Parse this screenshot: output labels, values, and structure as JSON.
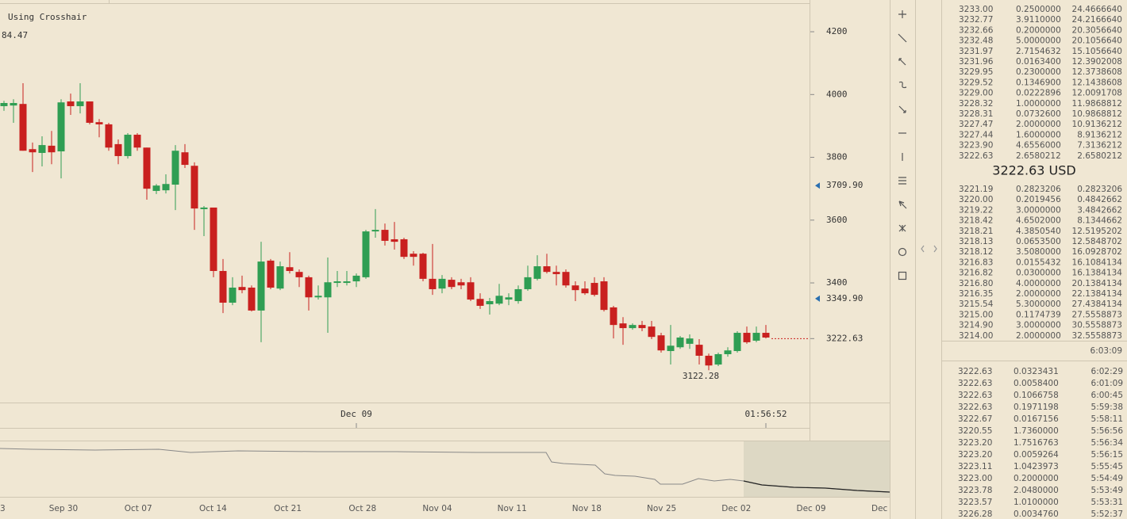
{
  "chart_data": {
    "type": "candlestick",
    "crosshair_label": "Using Crosshair",
    "crosshair_value": "84.47",
    "up_color": "#2f9e53",
    "down_color": "#c9201f",
    "open": [
      3963,
      3965,
      3970,
      3826,
      3814,
      3837,
      3819,
      3978,
      3963,
      3978,
      3912,
      3905,
      3842,
      3804,
      3872,
      3831,
      3693,
      3695,
      3713,
      3816,
      3773,
      3635,
      3640,
      3438,
      3337,
      3387,
      3385,
      3312,
      3471,
      3382,
      3450,
      3435,
      3418,
      3354,
      3354,
      3400,
      3400,
      3405,
      3418,
      3564,
      3569,
      3539,
      3539,
      3493,
      3493,
      3413,
      3382,
      3410,
      3402,
      3402,
      3349,
      3332,
      3334,
      3347,
      3342,
      3380,
      3413,
      3453,
      3435,
      3435,
      3392,
      3382,
      3400,
      3405,
      3322,
      3271,
      3256,
      3266,
      3261,
      3233,
      3183,
      3195,
      3206,
      3203,
      3168,
      3140,
      3173,
      3183,
      3241,
      3216,
      3241
    ],
    "high": [
      3980,
      3985,
      4036,
      3847,
      3867,
      3884,
      3985,
      4003,
      4036,
      3978,
      3922,
      3910,
      3857,
      3877,
      3877,
      3831,
      3715,
      3746,
      3839,
      3842,
      3784,
      3645,
      3640,
      3476,
      3418,
      3423,
      3392,
      3531,
      3476,
      3468,
      3498,
      3443,
      3423,
      3392,
      3481,
      3438,
      3438,
      3430,
      3569,
      3635,
      3589,
      3594,
      3544,
      3501,
      3496,
      3524,
      3425,
      3418,
      3413,
      3418,
      3367,
      3352,
      3397,
      3367,
      3392,
      3455,
      3488,
      3493,
      3455,
      3443,
      3405,
      3405,
      3418,
      3418,
      3327,
      3291,
      3271,
      3279,
      3279,
      3241,
      3266,
      3231,
      3236,
      3221,
      3175,
      3178,
      3195,
      3246,
      3261,
      3261,
      3266
    ],
    "low": [
      3948,
      3910,
      3821,
      3753,
      3771,
      3778,
      3733,
      3935,
      3940,
      3905,
      3864,
      3821,
      3778,
      3796,
      3821,
      3665,
      3683,
      3685,
      3632,
      3766,
      3569,
      3549,
      3418,
      3304,
      3329,
      3367,
      3309,
      3211,
      3380,
      3377,
      3430,
      3387,
      3312,
      3347,
      3241,
      3387,
      3392,
      3387,
      3413,
      3544,
      3519,
      3506,
      3476,
      3455,
      3405,
      3362,
      3367,
      3380,
      3380,
      3342,
      3317,
      3299,
      3329,
      3329,
      3334,
      3375,
      3408,
      3430,
      3392,
      3385,
      3342,
      3362,
      3357,
      3309,
      3223,
      3203,
      3251,
      3246,
      3221,
      3178,
      3140,
      3190,
      3190,
      3140,
      3122,
      3135,
      3165,
      3178,
      3206,
      3211,
      3223
    ],
    "close": [
      3973,
      3973,
      3821,
      3816,
      3839,
      3816,
      3975,
      3963,
      3978,
      3910,
      3905,
      3831,
      3804,
      3872,
      3831,
      3700,
      3710,
      3715,
      3821,
      3776,
      3637,
      3640,
      3438,
      3337,
      3385,
      3377,
      3312,
      3468,
      3385,
      3453,
      3438,
      3418,
      3354,
      3359,
      3402,
      3405,
      3405,
      3423,
      3564,
      3569,
      3534,
      3531,
      3483,
      3483,
      3413,
      3380,
      3413,
      3387,
      3392,
      3347,
      3327,
      3342,
      3359,
      3354,
      3380,
      3418,
      3453,
      3435,
      3428,
      3392,
      3377,
      3367,
      3362,
      3314,
      3266,
      3256,
      3266,
      3256,
      3228,
      3185,
      3200,
      3226,
      3223,
      3168,
      3137,
      3173,
      3185,
      3241,
      3211,
      3241,
      3226
    ],
    "ylim": [
      3019,
      4291
    ],
    "yticks": [
      4200,
      4000,
      3800,
      3600,
      3400
    ],
    "price_markers": [
      {
        "value": 3709.9,
        "label": "3709.90"
      },
      {
        "value": 3349.9,
        "label": "3349.90"
      }
    ],
    "marker_color": "#2a6fb0",
    "last_price": {
      "value": 3222.63,
      "label": "3222.63"
    },
    "low_annotation": {
      "value": 3122.28,
      "label": "3122.28"
    },
    "time_labels": [
      "Dec 09",
      "01:56:52"
    ]
  },
  "navigator": {
    "labels": [
      "3",
      "Sep 30",
      "Oct 07",
      "Oct 14",
      "Oct 21",
      "Oct 28",
      "Nov 04",
      "Nov 11",
      "Nov 18",
      "Nov 25",
      "Dec 02",
      "Dec 09",
      "Dec"
    ]
  },
  "order_book": {
    "asks": [
      [
        "3233.00",
        "0.2500000",
        "24.4666640"
      ],
      [
        "3232.77",
        "3.9110000",
        "24.2166640"
      ],
      [
        "3232.66",
        "0.2000000",
        "20.3056640"
      ],
      [
        "3232.48",
        "5.0000000",
        "20.1056640"
      ],
      [
        "3231.97",
        "2.7154632",
        "15.1056640"
      ],
      [
        "3231.96",
        "0.0163400",
        "12.3902008"
      ],
      [
        "3229.95",
        "0.2300000",
        "12.3738608"
      ],
      [
        "3229.52",
        "0.1346900",
        "12.1438608"
      ],
      [
        "3229.00",
        "0.0222896",
        "12.0091708"
      ],
      [
        "3228.32",
        "1.0000000",
        "11.9868812"
      ],
      [
        "3228.31",
        "0.0732600",
        "10.9868812"
      ],
      [
        "3227.47",
        "2.0000000",
        "10.9136212"
      ],
      [
        "3227.44",
        "1.6000000",
        "8.9136212"
      ],
      [
        "3223.90",
        "4.6556000",
        "7.3136212"
      ],
      [
        "3222.63",
        "2.6580212",
        "2.6580212"
      ]
    ],
    "mid": "3222.63 USD",
    "bids": [
      [
        "3221.19",
        "0.2823206",
        "0.2823206"
      ],
      [
        "3220.00",
        "0.2019456",
        "0.4842662"
      ],
      [
        "3219.22",
        "3.0000000",
        "3.4842662"
      ],
      [
        "3218.42",
        "4.6502000",
        "8.1344662"
      ],
      [
        "3218.21",
        "4.3850540",
        "12.5195202"
      ],
      [
        "3218.13",
        "0.0653500",
        "12.5848702"
      ],
      [
        "3218.12",
        "3.5080000",
        "16.0928702"
      ],
      [
        "3216.83",
        "0.0155432",
        "16.1084134"
      ],
      [
        "3216.82",
        "0.0300000",
        "16.1384134"
      ],
      [
        "3216.80",
        "4.0000000",
        "20.1384134"
      ],
      [
        "3216.35",
        "2.0000000",
        "22.1384134"
      ],
      [
        "3215.54",
        "5.3000000",
        "27.4384134"
      ],
      [
        "3215.00",
        "0.1174739",
        "27.5558873"
      ],
      [
        "3214.90",
        "3.0000000",
        "30.5558873"
      ],
      [
        "3214.00",
        "2.0000000",
        "32.5558873"
      ]
    ],
    "ask_color": "#c0392b",
    "bid_color": "#5e9a48",
    "time": "6:03:09"
  },
  "trades": [
    {
      "price": "3222.63",
      "amount": "0.0323431",
      "time": "6:02:29",
      "color": "#c0392b"
    },
    {
      "price": "3222.63",
      "amount": "0.0058400",
      "time": "6:01:09",
      "color": "#c0392b"
    },
    {
      "price": "3222.63",
      "amount": "0.1066758",
      "time": "6:00:45",
      "color": "#c0392b"
    },
    {
      "price": "3222.63",
      "amount": "0.1971198",
      "time": "5:59:38",
      "color": "#c0392b"
    },
    {
      "price": "3222.67",
      "amount": "0.0167156",
      "time": "5:58:11",
      "color": "#2e7d32"
    },
    {
      "price": "3220.55",
      "amount": "1.7360000",
      "time": "5:56:56",
      "color": "#c0392b"
    },
    {
      "price": "3223.20",
      "amount": "1.7516763",
      "time": "5:56:34",
      "color": "#2e7d32"
    },
    {
      "price": "3223.20",
      "amount": "0.0059264",
      "time": "5:56:15",
      "color": "#2e7d32"
    },
    {
      "price": "3223.11",
      "amount": "1.0423973",
      "time": "5:55:45",
      "color": "#2e7d32"
    },
    {
      "price": "3223.00",
      "amount": "0.2000000",
      "time": "5:54:49",
      "color": "#c0392b"
    },
    {
      "price": "3223.78",
      "amount": "2.0480000",
      "time": "5:53:49",
      "color": "#2e7d32"
    },
    {
      "price": "3223.57",
      "amount": "1.0100000",
      "time": "5:53:31",
      "color": "#c0392b"
    },
    {
      "price": "3226.28",
      "amount": "0.0034760",
      "time": "5:52:37",
      "color": "#c0392b"
    }
  ]
}
